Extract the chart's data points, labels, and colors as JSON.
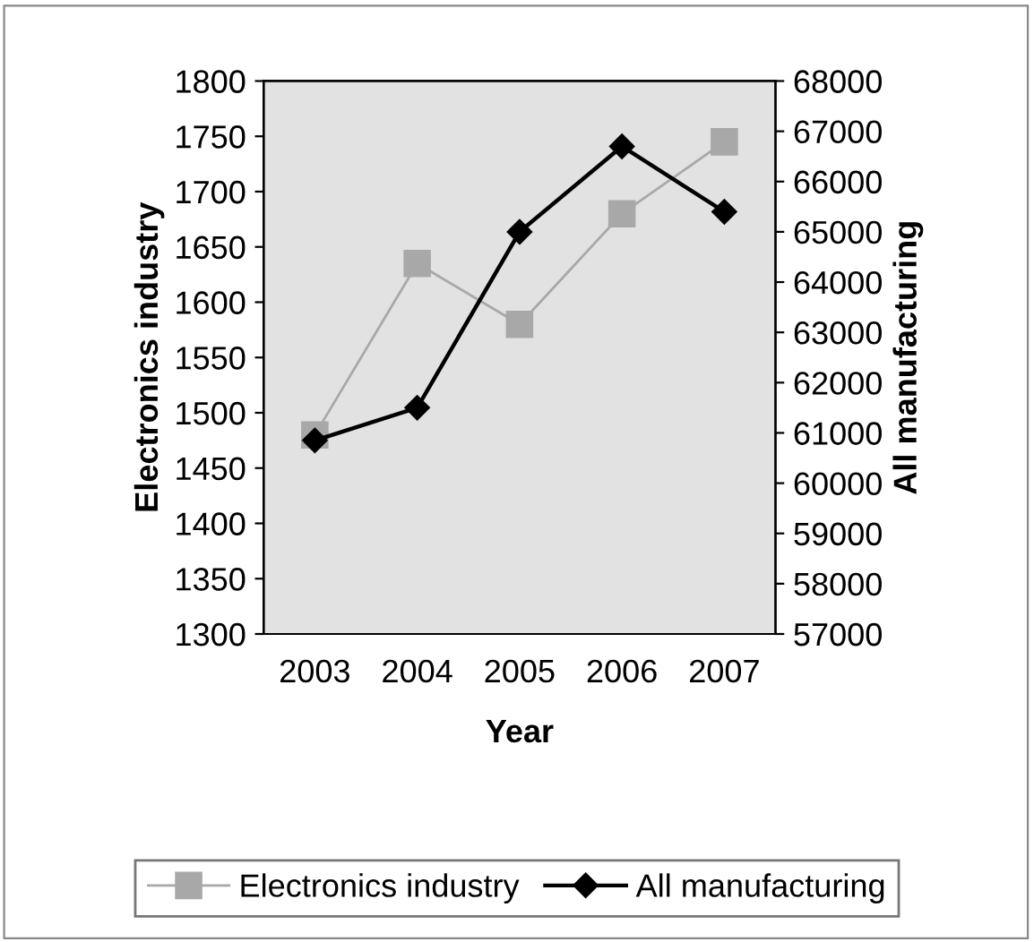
{
  "chart_data": {
    "type": "line",
    "xlabel": "Year",
    "ylabel": "Electronics industry",
    "y2label": "All manufacturing",
    "categories": [
      "2003",
      "2004",
      "2005",
      "2006",
      "2007"
    ],
    "series": [
      {
        "name": "Electronics industry",
        "color": "#a8a8a8",
        "marker": "square",
        "values": [
          1480,
          1635,
          1580,
          1680,
          1745
        ]
      },
      {
        "name": "All manufacturing",
        "color": "#000000",
        "marker": "diamond",
        "axis": "y2",
        "values": [
          60850,
          61500,
          65000,
          66700,
          65400
        ]
      }
    ],
    "ylim": [
      1300,
      1800
    ],
    "yticks": [
      1300,
      1350,
      1400,
      1450,
      1500,
      1550,
      1600,
      1650,
      1700,
      1750,
      1800
    ],
    "y2lim": [
      57000,
      68000
    ],
    "y2ticks": [
      57000,
      58000,
      59000,
      60000,
      61000,
      62000,
      63000,
      64000,
      65000,
      66000,
      67000,
      68000
    ],
    "grid": false,
    "legend": "bottom"
  }
}
